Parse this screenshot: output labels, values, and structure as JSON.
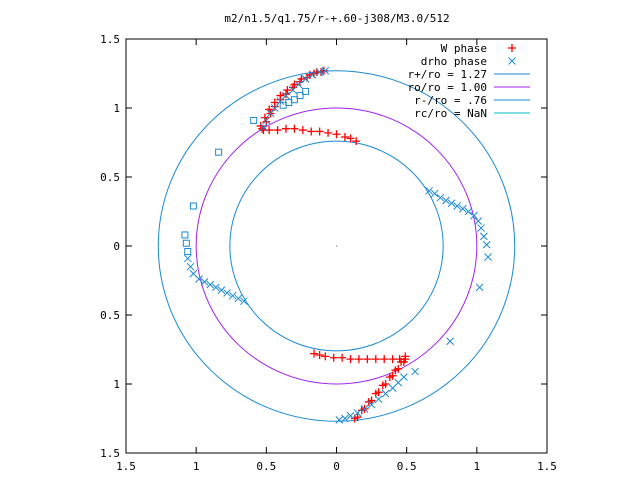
{
  "chart_data": {
    "type": "scatter",
    "title": "m2/n1.5/q1.75/r-+.60-j308/M3.0/512",
    "xlim": [
      -1.5,
      1.5
    ],
    "ylim": [
      -1.5,
      1.5
    ],
    "x_ticks": [
      -1.5,
      -1,
      -0.5,
      0,
      0.5,
      1,
      1.5
    ],
    "x_tick_labels": [
      "1.5",
      "1",
      "0.5",
      "0",
      "0.5",
      "1",
      "1.5"
    ],
    "y_ticks": [
      1.5,
      1,
      0.5,
      0,
      -0.5,
      -1,
      -1.5
    ],
    "y_tick_labels": [
      "1.5",
      "1",
      "0.5",
      "0",
      "0.5",
      "1",
      "1.5"
    ],
    "grid": false,
    "legend_position": "top-right",
    "circles": [
      {
        "name": "r+/ro = 1.27",
        "r": 1.27,
        "color": "#1a8ad4"
      },
      {
        "name": "ro/ro = 1.00",
        "r": 1.0,
        "color": "#a020f0"
      },
      {
        "name": "r-/ro = .76",
        "r": 0.76,
        "color": "#1a8ad4"
      },
      {
        "name": "rc/ro = NaN",
        "r": null,
        "color": "#00c0c0"
      }
    ],
    "series": [
      {
        "name": "W phase",
        "marker": "plus",
        "color": "#ff0000",
        "points": [
          [
            -0.52,
            0.84
          ],
          [
            -0.5,
            0.9
          ],
          [
            -0.47,
            0.96
          ],
          [
            -0.44,
            1.01
          ],
          [
            -0.4,
            1.06
          ],
          [
            -0.36,
            1.1
          ],
          [
            -0.31,
            1.15
          ],
          [
            -0.26,
            1.19
          ],
          [
            -0.21,
            1.22
          ],
          [
            -0.16,
            1.25
          ],
          [
            -0.11,
            1.26
          ],
          [
            -0.54,
            0.87
          ],
          [
            -0.51,
            0.93
          ],
          [
            -0.48,
            0.99
          ],
          [
            -0.44,
            1.04
          ],
          [
            -0.4,
            1.09
          ],
          [
            -0.35,
            1.13
          ],
          [
            -0.3,
            1.17
          ],
          [
            -0.25,
            1.21
          ],
          [
            -0.19,
            1.24
          ],
          [
            -0.14,
            1.26
          ],
          [
            -0.09,
            1.27
          ],
          [
            -0.53,
            0.85
          ],
          [
            -0.48,
            0.84
          ],
          [
            -0.42,
            0.84
          ],
          [
            -0.36,
            0.85
          ],
          [
            -0.3,
            0.85
          ],
          [
            -0.24,
            0.84
          ],
          [
            -0.18,
            0.83
          ],
          [
            -0.12,
            0.83
          ],
          [
            -0.06,
            0.82
          ],
          [
            0.0,
            0.81
          ],
          [
            0.06,
            0.79
          ],
          [
            0.1,
            0.78
          ],
          [
            0.14,
            0.76
          ],
          [
            0.13,
            -1.25
          ],
          [
            0.18,
            -1.19
          ],
          [
            0.23,
            -1.13
          ],
          [
            0.28,
            -1.07
          ],
          [
            0.33,
            -1.01
          ],
          [
            0.38,
            -0.95
          ],
          [
            0.42,
            -0.9
          ],
          [
            0.46,
            -0.84
          ],
          [
            0.49,
            -0.8
          ],
          [
            0.15,
            -1.24
          ],
          [
            0.2,
            -1.18
          ],
          [
            0.25,
            -1.12
          ],
          [
            0.3,
            -1.06
          ],
          [
            0.35,
            -1.0
          ],
          [
            0.4,
            -0.94
          ],
          [
            0.44,
            -0.89
          ],
          [
            0.48,
            -0.84
          ],
          [
            0.49,
            -0.82
          ],
          [
            0.45,
            -0.82
          ],
          [
            0.4,
            -0.82
          ],
          [
            0.34,
            -0.82
          ],
          [
            0.28,
            -0.82
          ],
          [
            0.22,
            -0.82
          ],
          [
            0.16,
            -0.82
          ],
          [
            0.1,
            -0.82
          ],
          [
            0.04,
            -0.81
          ],
          [
            -0.02,
            -0.81
          ],
          [
            -0.08,
            -0.8
          ],
          [
            -0.12,
            -0.79
          ],
          [
            -0.16,
            -0.78
          ]
        ]
      },
      {
        "name": "drho phase",
        "marker": "cross",
        "color": "#1a8ad4",
        "points": [
          [
            -0.52,
            0.86
          ],
          [
            -0.5,
            0.91
          ],
          [
            -0.47,
            0.96
          ],
          [
            -0.44,
            1.0
          ],
          [
            -0.4,
            1.05
          ],
          [
            -0.36,
            1.09
          ],
          [
            -0.31,
            1.13
          ],
          [
            -0.27,
            1.17
          ],
          [
            -0.22,
            1.21
          ],
          [
            -0.17,
            1.24
          ],
          [
            -0.12,
            1.26
          ],
          [
            -0.08,
            1.27
          ],
          [
            0.66,
            0.4
          ],
          [
            0.7,
            0.38
          ],
          [
            0.74,
            0.35
          ],
          [
            0.78,
            0.33
          ],
          [
            0.82,
            0.31
          ],
          [
            0.86,
            0.29
          ],
          [
            0.9,
            0.27
          ],
          [
            0.94,
            0.25
          ],
          [
            0.98,
            0.22
          ],
          [
            1.01,
            0.18
          ],
          [
            1.03,
            0.13
          ],
          [
            1.05,
            0.07
          ],
          [
            1.07,
            0.01
          ],
          [
            1.08,
            -0.08
          ],
          [
            1.02,
            -0.3
          ],
          [
            0.81,
            -0.69
          ],
          [
            0.56,
            -0.91
          ],
          [
            -1.06,
            -0.09
          ],
          [
            -1.04,
            -0.15
          ],
          [
            -1.02,
            -0.2
          ],
          [
            -0.98,
            -0.24
          ],
          [
            -0.94,
            -0.26
          ],
          [
            -0.9,
            -0.28
          ],
          [
            -0.86,
            -0.3
          ],
          [
            -0.82,
            -0.32
          ],
          [
            -0.78,
            -0.34
          ],
          [
            -0.74,
            -0.36
          ],
          [
            -0.7,
            -0.38
          ],
          [
            -0.66,
            -0.4
          ],
          [
            0.48,
            -0.95
          ],
          [
            0.44,
            -0.99
          ],
          [
            0.4,
            -1.03
          ],
          [
            0.35,
            -1.07
          ],
          [
            0.3,
            -1.11
          ],
          [
            0.25,
            -1.15
          ],
          [
            0.2,
            -1.18
          ],
          [
            0.15,
            -1.21
          ],
          [
            0.1,
            -1.23
          ],
          [
            0.06,
            -1.25
          ],
          [
            0.02,
            -1.26
          ]
        ]
      },
      {
        "name": "",
        "marker": "square",
        "color": "#1a8ad4",
        "points": [
          [
            -1.08,
            0.08
          ],
          [
            -1.07,
            0.02
          ],
          [
            -1.06,
            -0.04
          ],
          [
            -1.02,
            0.29
          ],
          [
            -0.84,
            0.68
          ],
          [
            -0.59,
            0.91
          ],
          [
            -0.38,
            1.02
          ],
          [
            -0.34,
            1.04
          ],
          [
            -0.3,
            1.06
          ],
          [
            -0.26,
            1.09
          ],
          [
            -0.22,
            1.12
          ]
        ]
      }
    ]
  }
}
